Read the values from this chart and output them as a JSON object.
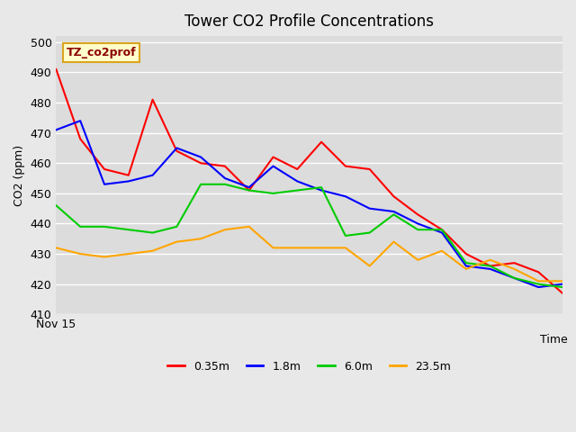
{
  "title": "Tower CO2 Profile Concentrations",
  "xlabel": "Time",
  "ylabel": "CO2 (ppm)",
  "ylim": [
    410,
    502
  ],
  "yticks": [
    410,
    420,
    430,
    440,
    450,
    460,
    470,
    480,
    490,
    500
  ],
  "xlabel_text": "Nov 15",
  "annotation": "TZ_co2prof",
  "annotation_color": "#8B0000",
  "annotation_bg": "#FFFFCC",
  "annotation_border": "#DAA520",
  "background_color": "#E8E8E8",
  "plot_bg": "#F0F0F0",
  "series": {
    "0.35m": {
      "color": "#FF0000",
      "data": [
        491,
        468,
        458,
        456,
        481,
        464,
        460,
        459,
        451,
        462,
        458,
        467,
        459,
        458,
        449,
        443,
        438,
        430,
        426,
        427,
        424,
        417
      ]
    },
    "1.8m": {
      "color": "#0000FF",
      "data": [
        471,
        474,
        453,
        454,
        456,
        465,
        462,
        455,
        452,
        459,
        454,
        451,
        449,
        445,
        444,
        440,
        437,
        426,
        425,
        422,
        419,
        420
      ]
    },
    "6.0m": {
      "color": "#00CC00",
      "data": [
        446,
        439,
        439,
        438,
        437,
        439,
        453,
        453,
        451,
        450,
        451,
        452,
        436,
        437,
        443,
        438,
        438,
        427,
        426,
        422,
        420,
        419
      ]
    },
    "23.5m": {
      "color": "#FFA500",
      "data": [
        432,
        430,
        429,
        430,
        431,
        434,
        435,
        438,
        439,
        432,
        432,
        432,
        432,
        426,
        434,
        428,
        431,
        425,
        428,
        425,
        421,
        421
      ]
    }
  },
  "legend_entries": [
    "0.35m",
    "1.8m",
    "6.0m",
    "23.5m"
  ],
  "legend_colors": [
    "#FF0000",
    "#0000FF",
    "#00CC00",
    "#FFA500"
  ]
}
